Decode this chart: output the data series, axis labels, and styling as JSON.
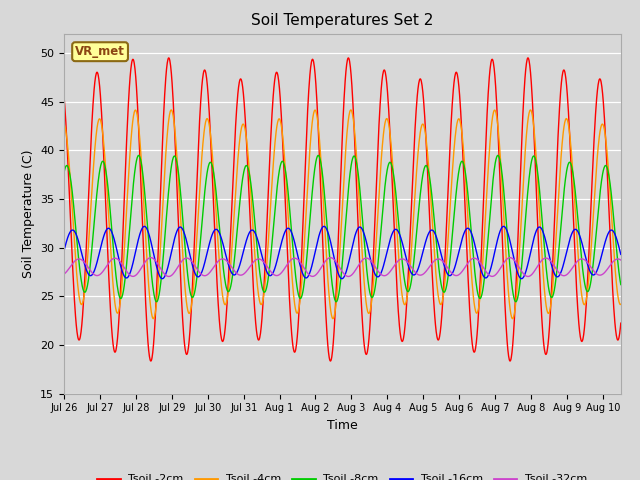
{
  "title": "Soil Temperatures Set 2",
  "xlabel": "Time",
  "ylabel": "Soil Temperature (C)",
  "ylim": [
    15,
    52
  ],
  "yticks": [
    15,
    20,
    25,
    30,
    35,
    40,
    45,
    50
  ],
  "bg_color": "#d8d8d8",
  "annotation_text": "VR_met",
  "annotation_box_color": "#ffff99",
  "annotation_box_edge": "#8B6914",
  "colors": {
    "Tsoil -2cm": "#ff0000",
    "Tsoil -4cm": "#ff9900",
    "Tsoil -8cm": "#00cc00",
    "Tsoil -16cm": "#0000ff",
    "Tsoil -32cm": "#cc44cc"
  },
  "n_points": 1500,
  "total_days": 15.5,
  "series": {
    "Tsoil -2cm": {
      "amp": 14.5,
      "mean": 34.0,
      "phase": 0.0,
      "depth_lag": 0.0
    },
    "Tsoil -4cm": {
      "amp": 10.0,
      "mean": 33.5,
      "phase": 0.0,
      "depth_lag": 0.07
    },
    "Tsoil -8cm": {
      "amp": 7.0,
      "mean": 32.0,
      "phase": 0.0,
      "depth_lag": 0.16
    },
    "Tsoil -16cm": {
      "amp": 2.5,
      "mean": 29.5,
      "phase": 0.0,
      "depth_lag": 0.32
    },
    "Tsoil -32cm": {
      "amp": 0.9,
      "mean": 28.0,
      "phase": 0.0,
      "depth_lag": 0.5
    }
  },
  "tick_labels": [
    "Jul 26",
    "Jul 27",
    "Jul 28",
    "Jul 29",
    "Jul 30",
    "Jul 31",
    "Aug 1",
    "Aug 2",
    "Aug 3",
    "Aug 4",
    "Aug 5",
    "Aug 6",
    "Aug 7",
    "Aug 8",
    "Aug 9",
    "Aug 10"
  ],
  "tick_positions": [
    0,
    1,
    2,
    3,
    4,
    5,
    6,
    7,
    8,
    9,
    10,
    11,
    12,
    13,
    14,
    15
  ],
  "linewidth": 1.0
}
